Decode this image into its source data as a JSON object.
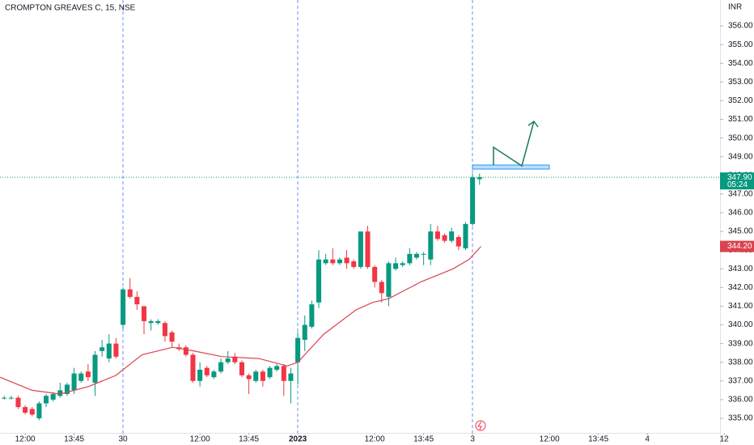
{
  "chart_data": {
    "type": "candlestick",
    "title": "CROMPTON GREAVES C, 15, NSE",
    "currency": "INR",
    "up_color": "#089981",
    "down_color": "#f23645",
    "x": [
      -3,
      -2,
      -1,
      0,
      1,
      2,
      3,
      4,
      5,
      6,
      7,
      8,
      9,
      10,
      11,
      12,
      13,
      14,
      15,
      16,
      17,
      18,
      19,
      20,
      21,
      22,
      23,
      24,
      25,
      26,
      27,
      28,
      29,
      30,
      31,
      32,
      33,
      34,
      35,
      36,
      37,
      38,
      39,
      40,
      41,
      42,
      43,
      44,
      45,
      46,
      47,
      48,
      49,
      50,
      51,
      52,
      53,
      54,
      55,
      56,
      57,
      58,
      59,
      60,
      61,
      62,
      63,
      64,
      65
    ],
    "open": [
      336.1,
      336.1,
      336.1,
      335.6,
      335.5,
      335.0,
      335.8,
      336.0,
      336.2,
      336.3,
      336.5,
      337.0,
      337.5,
      336.9,
      338.6,
      338.2,
      339.0,
      340.0,
      341.9,
      341.5,
      341.0,
      340.1,
      340.1,
      340.1,
      339.6,
      338.8,
      338.8,
      338.4,
      337.0,
      337.7,
      337.2,
      337.5,
      338.0,
      338.3,
      338.0,
      337.3,
      337.0,
      337.5,
      337.2,
      337.6,
      337.8,
      337.0,
      338.0,
      339.2,
      339.9,
      341.2,
      343.3,
      343.5,
      343.3,
      343.6,
      343.4,
      343.1,
      345.0,
      343.1,
      342.3,
      341.5,
      343.0,
      343.2,
      343.3,
      343.6,
      343.8,
      343.5,
      345.0,
      344.8,
      344.5,
      344.7,
      344.1,
      345.4,
      347.8
    ],
    "high": [
      336.2,
      336.2,
      336.2,
      335.7,
      335.6,
      335.9,
      336.3,
      336.4,
      336.9,
      336.9,
      337.7,
      337.5,
      337.9,
      338.6,
      339.2,
      339.5,
      339.3,
      342.0,
      342.5,
      341.8,
      341.0,
      340.3,
      340.3,
      340.2,
      339.7,
      339.0,
      338.9,
      338.5,
      338.0,
      337.8,
      337.6,
      338.2,
      338.6,
      338.5,
      338.1,
      337.4,
      337.6,
      337.6,
      337.8,
      337.9,
      337.9,
      337.7,
      339.6,
      340.5,
      341.3,
      344.0,
      343.8,
      344.1,
      343.6,
      344.0,
      343.5,
      345.0,
      345.3,
      343.2,
      342.4,
      343.4,
      343.6,
      343.4,
      344.1,
      343.9,
      343.9,
      345.4,
      345.3,
      344.9,
      345.2,
      344.8,
      345.5,
      348.1,
      348.1
    ],
    "low": [
      336.0,
      336.0,
      335.5,
      335.2,
      335.1,
      334.9,
      335.6,
      335.9,
      336.1,
      336.2,
      336.3,
      336.9,
      337.0,
      336.2,
      338.3,
      338.0,
      338.2,
      339.8,
      341.4,
      340.8,
      339.5,
      339.7,
      340.0,
      339.1,
      338.8,
      338.6,
      338.3,
      336.9,
      336.7,
      337.2,
      337.1,
      337.4,
      337.9,
      337.9,
      337.2,
      336.3,
      336.9,
      336.7,
      337.1,
      337.5,
      336.2,
      335.8,
      336.8,
      338.6,
      339.8,
      340.9,
      343.2,
      343.2,
      343.2,
      343.0,
      343.0,
      343.0,
      343.0,
      342.0,
      341.2,
      341.0,
      342.9,
      343.1,
      343.2,
      343.5,
      343.2,
      343.2,
      344.5,
      344.4,
      344.4,
      344.0,
      344.0,
      345.3,
      347.5
    ],
    "close": [
      336.1,
      336.1,
      335.6,
      335.3,
      335.2,
      335.8,
      336.2,
      336.3,
      336.5,
      336.8,
      337.4,
      337.4,
      337.2,
      338.4,
      338.8,
      339.0,
      338.3,
      341.9,
      341.5,
      341.1,
      340.2,
      340.2,
      340.2,
      339.4,
      339.1,
      338.7,
      338.4,
      337.0,
      337.6,
      337.3,
      337.5,
      338.0,
      338.2,
      338.0,
      337.3,
      337.1,
      337.5,
      337.0,
      337.7,
      337.8,
      337.0,
      337.4,
      339.3,
      340.0,
      341.1,
      343.5,
      343.5,
      343.3,
      343.5,
      343.3,
      343.1,
      345.0,
      343.1,
      342.3,
      341.7,
      343.3,
      343.3,
      343.3,
      343.8,
      343.8,
      343.8,
      345.0,
      344.6,
      344.5,
      345.0,
      344.2,
      345.4,
      347.9,
      347.9
    ],
    "moving_average": {
      "color": "#d9434f",
      "x": [
        -3.6,
        1,
        5,
        9.1,
        13,
        16.7,
        21.1,
        24.2,
        28.2,
        33.4,
        37.5,
        39,
        42.7,
        47.3,
        49.7,
        52,
        56.6,
        61.2,
        63.5,
        65.2
      ],
      "values": [
        337.2,
        336.5,
        336.3,
        336.7,
        337.3,
        338.4,
        338.8,
        338.6,
        338.3,
        338.2,
        337.8,
        338.0,
        339.5,
        340.8,
        341.2,
        341.4,
        342.3,
        343.0,
        343.5,
        344.2
      ]
    },
    "last_price": {
      "value": 347.9,
      "label": "347.90",
      "countdown": "05:24"
    },
    "ma_price": {
      "value": 344.2,
      "label": "344.20"
    },
    "xlim": [
      -3.6,
      99.4
    ],
    "xticks": [
      {
        "value": 0,
        "label": "12:00"
      },
      {
        "value": 7,
        "label": "13:45"
      },
      {
        "value": 14,
        "label": "30"
      },
      {
        "value": 25,
        "label": "12:00"
      },
      {
        "value": 32,
        "label": "13:45"
      },
      {
        "value": 39,
        "label": "2023"
      },
      {
        "value": 50,
        "label": "12:00"
      },
      {
        "value": 57,
        "label": "13:45"
      },
      {
        "value": 64,
        "label": "3"
      },
      {
        "value": 75,
        "label": "12:00"
      },
      {
        "value": 82,
        "label": "13:45"
      },
      {
        "value": 89,
        "label": "4"
      },
      {
        "value": 100,
        "label": "12"
      }
    ],
    "ylim": [
      334.22,
      357.39
    ],
    "yticks": [
      {
        "value": 335,
        "label": "335.00"
      },
      {
        "value": 336,
        "label": "336.00"
      },
      {
        "value": 337,
        "label": "337.00"
      },
      {
        "value": 338,
        "label": "338.00"
      },
      {
        "value": 339,
        "label": "339.00"
      },
      {
        "value": 340,
        "label": "340.00"
      },
      {
        "value": 341,
        "label": "341.00"
      },
      {
        "value": 342,
        "label": "342.00"
      },
      {
        "value": 343,
        "label": "343.00"
      },
      {
        "value": 344,
        "label": "344.00"
      },
      {
        "value": 345,
        "label": "345.00"
      },
      {
        "value": 346,
        "label": "346.00"
      },
      {
        "value": 347,
        "label": "347.00"
      },
      {
        "value": 348,
        "label": "348.00"
      },
      {
        "value": 349,
        "label": "349.00"
      },
      {
        "value": 350,
        "label": "350.00"
      },
      {
        "value": 351,
        "label": "351.00"
      },
      {
        "value": 352,
        "label": "352.00"
      },
      {
        "value": 353,
        "label": "353.00"
      },
      {
        "value": 354,
        "label": "354.00"
      },
      {
        "value": 355,
        "label": "355.00"
      },
      {
        "value": 356,
        "label": "356.00"
      }
    ]
  }
}
